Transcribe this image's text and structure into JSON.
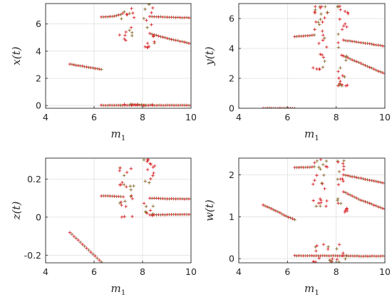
{
  "chart_data": [
    {
      "type": "scatter",
      "id": "x",
      "title": "",
      "xlabel": "m",
      "xlabel_sub": "1",
      "ylabel": "x(t)",
      "xlim": [
        4,
        10
      ],
      "ylim": [
        -0.2,
        7.5
      ],
      "xticks": [
        4,
        6,
        8,
        10
      ],
      "xtick_labels": [
        "4",
        "6",
        "8",
        "10"
      ],
      "yticks": [
        0,
        2,
        4,
        6
      ],
      "ytick_labels": [
        "0",
        "2",
        "4",
        "6"
      ],
      "grid": true,
      "marker": "+",
      "branches": [
        {
          "x": [
            5.0,
            5.5,
            6.0,
            6.3
          ],
          "y": [
            3.05,
            2.9,
            2.75,
            2.65
          ]
        },
        {
          "x": [
            6.3,
            6.8,
            7.5,
            8.3,
            9.0,
            10.0
          ],
          "y": [
            0.02,
            0.02,
            0.02,
            0.02,
            0.02,
            0.02
          ]
        },
        {
          "x": [
            6.3,
            6.8,
            7.1
          ],
          "y": [
            6.5,
            6.55,
            6.7
          ]
        },
        {
          "x": [
            8.3,
            9.0,
            10.0
          ],
          "y": [
            6.55,
            6.5,
            6.45
          ]
        },
        {
          "x": [
            8.3,
            9.0,
            10.0
          ],
          "y": [
            5.3,
            4.95,
            4.55
          ]
        }
      ],
      "chaotic": [
        {
          "x": [
            7.05,
            7.65
          ],
          "y": [
            4.8,
            7.4
          ]
        },
        {
          "x": [
            8.05,
            8.5
          ],
          "y": [
            4.2,
            7.5
          ]
        },
        {
          "x": [
            7.05,
            8.5
          ],
          "y": [
            0.0,
            0.1
          ]
        }
      ]
    },
    {
      "type": "scatter",
      "id": "y",
      "title": "",
      "xlabel": "m",
      "xlabel_sub": "1",
      "ylabel": "y(t)",
      "xlim": [
        4,
        10
      ],
      "ylim": [
        0,
        7
      ],
      "xticks": [
        4,
        6,
        8,
        10
      ],
      "xtick_labels": [
        "4",
        "6",
        "8",
        "10"
      ],
      "yticks": [
        0,
        2,
        4,
        6
      ],
      "ytick_labels": [
        "0",
        "2",
        "4",
        "6"
      ],
      "grid": true,
      "marker": "+",
      "branches": [
        {
          "x": [
            5.0,
            5.5,
            6.0,
            6.3
          ],
          "y": [
            0.0,
            0.0,
            0.0,
            0.0
          ]
        },
        {
          "x": [
            6.3,
            6.8,
            7.1
          ],
          "y": [
            4.8,
            4.85,
            4.9
          ]
        },
        {
          "x": [
            8.3,
            9.0,
            10.0
          ],
          "y": [
            4.55,
            4.4,
            4.15
          ]
        },
        {
          "x": [
            8.3,
            9.0,
            10.0
          ],
          "y": [
            3.5,
            3.0,
            2.3
          ]
        }
      ],
      "chaotic": [
        {
          "x": [
            7.05,
            7.65
          ],
          "y": [
            2.6,
            6.8
          ]
        },
        {
          "x": [
            8.05,
            8.5
          ],
          "y": [
            1.5,
            6.9
          ]
        }
      ]
    },
    {
      "type": "scatter",
      "id": "z",
      "title": "",
      "xlabel": "m",
      "xlabel_sub": "1",
      "ylabel": "z(t)",
      "xlim": [
        4,
        10
      ],
      "ylim": [
        -0.24,
        0.31
      ],
      "xticks": [
        4,
        6,
        8,
        10
      ],
      "xtick_labels": [
        "4",
        "6",
        "8",
        "10"
      ],
      "yticks": [
        -0.2,
        0,
        0.2
      ],
      "ytick_labels": [
        "-0.2",
        "0",
        "0.2"
      ],
      "grid": true,
      "marker": "+",
      "branches": [
        {
          "x": [
            5.0,
            5.5,
            6.0,
            6.3
          ],
          "y": [
            -0.08,
            -0.14,
            -0.2,
            -0.235
          ]
        },
        {
          "x": [
            6.3,
            6.8,
            7.1
          ],
          "y": [
            0.112,
            0.11,
            0.108
          ]
        },
        {
          "x": [
            8.3,
            9.0,
            10.0
          ],
          "y": [
            0.1,
            0.097,
            0.095
          ]
        },
        {
          "x": [
            8.3,
            9.0,
            10.0
          ],
          "y": [
            0.012,
            0.013,
            0.015
          ]
        }
      ],
      "chaotic": [
        {
          "x": [
            7.05,
            7.65
          ],
          "y": [
            0.0,
            0.26
          ]
        },
        {
          "x": [
            8.05,
            8.5
          ],
          "y": [
            0.0,
            0.31
          ]
        }
      ]
    },
    {
      "type": "scatter",
      "id": "w",
      "title": "",
      "xlabel": "m",
      "xlabel_sub": "1",
      "ylabel": "w(t)",
      "xlim": [
        4,
        10
      ],
      "ylim": [
        -0.1,
        2.4
      ],
      "xticks": [
        4,
        6,
        8,
        10
      ],
      "xtick_labels": [
        "4",
        "6",
        "8",
        "10"
      ],
      "yticks": [
        0,
        1,
        2
      ],
      "ytick_labels": [
        "0",
        "1",
        "2"
      ],
      "grid": true,
      "marker": "+",
      "branches": [
        {
          "x": [
            5.0,
            5.5,
            6.0,
            6.3
          ],
          "y": [
            1.28,
            1.15,
            1.0,
            0.93
          ]
        },
        {
          "x": [
            6.3,
            6.8,
            7.1
          ],
          "y": [
            2.18,
            2.18,
            2.2
          ]
        },
        {
          "x": [
            6.3,
            6.8,
            7.5,
            8.3,
            9.0,
            10.0
          ],
          "y": [
            0.07,
            0.07,
            0.07,
            0.07,
            0.06,
            0.06
          ]
        },
        {
          "x": [
            8.3,
            9.0,
            10.0
          ],
          "y": [
            2.0,
            1.92,
            1.8
          ]
        },
        {
          "x": [
            8.3,
            9.0,
            10.0
          ],
          "y": [
            1.6,
            1.4,
            1.18
          ]
        }
      ],
      "chaotic": [
        {
          "x": [
            7.05,
            7.65
          ],
          "y": [
            1.25,
            2.4
          ]
        },
        {
          "x": [
            8.05,
            8.5
          ],
          "y": [
            1.1,
            2.35
          ]
        },
        {
          "x": [
            7.05,
            8.5
          ],
          "y": [
            -0.08,
            0.35
          ]
        }
      ]
    }
  ]
}
